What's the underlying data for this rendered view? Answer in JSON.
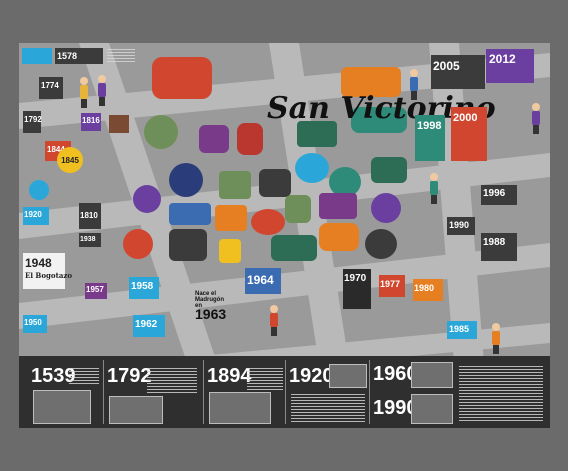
{
  "title": "San Victorino",
  "poster_years": [
    "1578",
    "1774",
    "1792",
    "1816",
    "1844",
    "1845",
    "1810",
    "1920",
    "1938",
    "1948",
    "1957",
    "1958",
    "1950",
    "1962",
    "1963",
    "1964",
    "1970",
    "1977",
    "1980",
    "1985",
    "1988",
    "1990",
    "1996",
    "1998",
    "2000",
    "2005",
    "2012"
  ],
  "event_labels": {
    "bogotazo": "El Bogotazo",
    "madrugon": "Nace el Madrugón en"
  },
  "timeline_years": [
    "1539",
    "1792",
    "1894",
    "1920",
    "1960",
    "1990"
  ],
  "colors": {
    "page": "#6b6b6b",
    "poster": "#9a9a9a",
    "streets": "#b8b8b8",
    "timeline": "#2f2f2f"
  }
}
